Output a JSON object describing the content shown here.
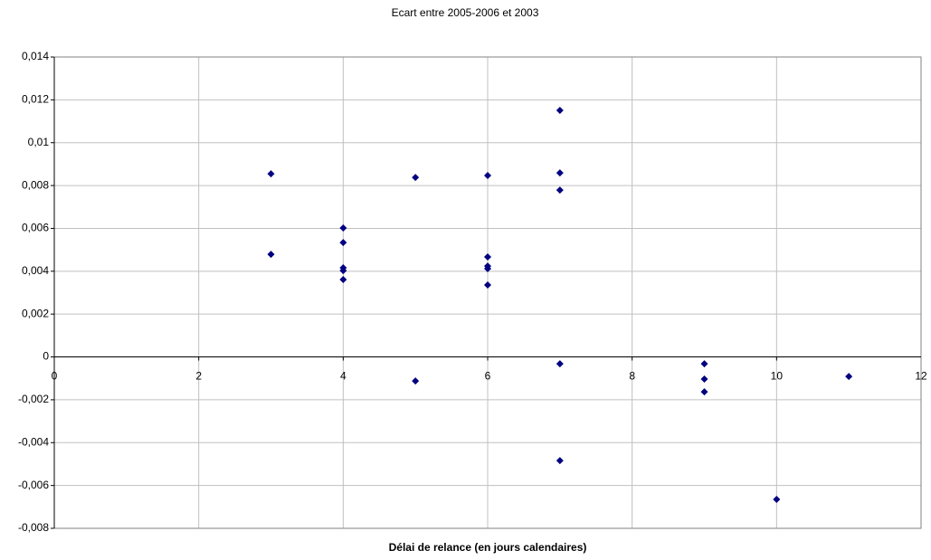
{
  "chart_data": {
    "type": "scatter",
    "title": "Ecart entre 2005-2006 et 2003",
    "x_label": "Délai de relance (en jours calendaires)",
    "x": [
      3,
      3,
      4,
      4,
      4,
      4,
      4,
      5,
      5,
      6,
      6,
      6,
      6,
      6,
      7,
      7,
      7,
      7,
      7,
      9,
      9,
      9,
      10,
      11
    ],
    "values": [
      0.00855,
      0.00479,
      0.00602,
      0.00534,
      0.00416,
      0.00403,
      0.00361,
      0.00838,
      -0.00112,
      0.00847,
      0.00467,
      0.00424,
      0.00412,
      0.00336,
      0.01151,
      0.00859,
      0.00779,
      -0.00032,
      -0.00484,
      -0.00032,
      -0.00103,
      -0.00163,
      -0.00665,
      -0.00091
    ],
    "color": "#000080",
    "xlim": [
      0,
      12
    ],
    "xticks": [
      0,
      2,
      4,
      6,
      8,
      10,
      12
    ],
    "ylim": [
      -0.008,
      0.014
    ],
    "yticks": [
      {
        "value": -0.008,
        "label": "-0,008"
      },
      {
        "value": -0.006,
        "label": "-0,006"
      },
      {
        "value": -0.004,
        "label": "-0,004"
      },
      {
        "value": -0.002,
        "label": "-0,002"
      },
      0,
      {
        "value": 0.002,
        "label": "0,002"
      },
      {
        "value": 0.004,
        "label": "0,004"
      },
      {
        "value": 0.006,
        "label": "0,006"
      },
      {
        "value": 0.008,
        "label": "0,008"
      },
      {
        "value": 0.01,
        "label": "0,01"
      },
      {
        "value": 0.012,
        "label": "0,012"
      },
      {
        "value": 0.014,
        "label": "0,014"
      }
    ],
    "grid": true
  }
}
